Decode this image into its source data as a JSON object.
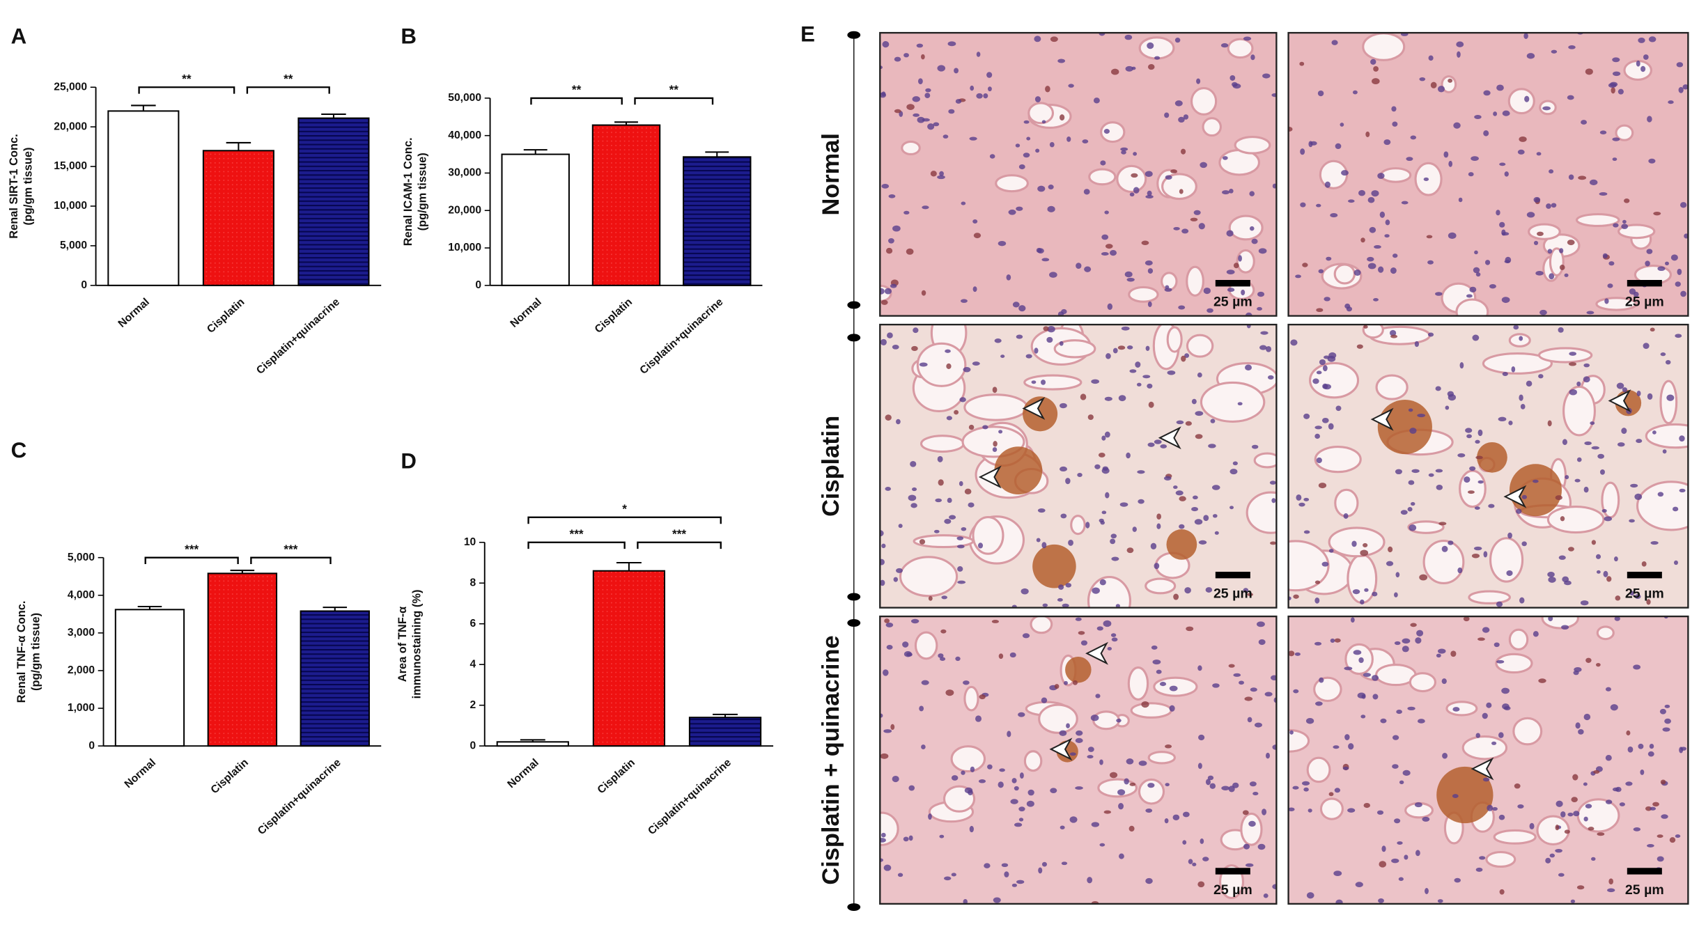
{
  "chart_data": [
    {
      "type": "bar",
      "panel": "A",
      "y_label": [
        "Renal SIRT-1 Conc.",
        "(pg/gm tissue)"
      ],
      "categories": [
        "Normal",
        "Cisplatin",
        "Cisplatin+quinacrine"
      ],
      "values": [
        22000,
        17000,
        21100
      ],
      "errors": [
        700,
        1000,
        500
      ],
      "colors": [
        "#ffffff",
        "#ee1111",
        "#1c1c8e"
      ],
      "hatch": [
        "none",
        "dots",
        "lines"
      ],
      "ylim": [
        0,
        25000
      ],
      "yticks": [
        0,
        {
          "value": 5000,
          "label": "5,000"
        },
        {
          "value": 10000,
          "label": "10,000"
        },
        {
          "value": 15000,
          "label": "15,000"
        },
        {
          "value": 20000,
          "label": "20,000"
        },
        {
          "value": 25000,
          "label": "25,000"
        }
      ],
      "significance": [
        {
          "text": "**",
          "from": "Normal",
          "to": "Cisplatin"
        },
        {
          "text": "**",
          "from": "Cisplatin",
          "to": "Cisplatin+quinacrine"
        }
      ]
    },
    {
      "type": "bar",
      "panel": "B",
      "y_label": [
        "Renal ICAM-1 Conc.",
        "(pg/gm tissue)"
      ],
      "categories": [
        "Normal",
        "Cisplatin",
        "Cisplatin+quinacrine"
      ],
      "values": [
        35000,
        42800,
        34300
      ],
      "errors": [
        1200,
        800,
        1300
      ],
      "colors": [
        "#ffffff",
        "#ee1111",
        "#1c1c8e"
      ],
      "hatch": [
        "none",
        "dots",
        "lines"
      ],
      "ylim": [
        0,
        50000
      ],
      "yticks": [
        0,
        {
          "value": 10000,
          "label": "10,000"
        },
        {
          "value": 20000,
          "label": "20,000"
        },
        {
          "value": 30000,
          "label": "30,000"
        },
        {
          "value": 40000,
          "label": "40,000"
        },
        {
          "value": 50000,
          "label": "50,000"
        }
      ],
      "significance": [
        {
          "text": "**",
          "from": "Normal",
          "to": "Cisplatin"
        },
        {
          "text": "**",
          "from": "Cisplatin",
          "to": "Cisplatin+quinacrine"
        }
      ]
    },
    {
      "type": "bar",
      "panel": "C",
      "y_label": [
        "Renal TNF-α Conc.",
        "(pg/gm tissue)"
      ],
      "categories": [
        "Normal",
        "Cisplatin",
        "Cisplatin+quinacrine"
      ],
      "values": [
        3620,
        4580,
        3580
      ],
      "errors": [
        80,
        80,
        100
      ],
      "colors": [
        "#ffffff",
        "#ee1111",
        "#1c1c8e"
      ],
      "hatch": [
        "none",
        "dots",
        "lines"
      ],
      "ylim": [
        0,
        5000
      ],
      "yticks": [
        0,
        {
          "value": 1000,
          "label": "1,000"
        },
        {
          "value": 2000,
          "label": "2,000"
        },
        {
          "value": 3000,
          "label": "3,000"
        },
        {
          "value": 4000,
          "label": "4,000"
        },
        {
          "value": 5000,
          "label": "5,000"
        }
      ],
      "significance": [
        {
          "text": "***",
          "from": "Normal",
          "to": "Cisplatin"
        },
        {
          "text": "***",
          "from": "Cisplatin",
          "to": "Cisplatin+quinacrine"
        }
      ]
    },
    {
      "type": "bar",
      "panel": "D",
      "y_label": [
        "Area of TNF-α",
        "immunostaining (%)"
      ],
      "categories": [
        "Normal",
        "Cisplatin",
        "Cisplatin+quinacrine"
      ],
      "values": [
        0.2,
        8.6,
        1.4
      ],
      "errors": [
        0.1,
        0.4,
        0.15
      ],
      "colors": [
        "#ffffff",
        "#ee1111",
        "#1c1c8e"
      ],
      "hatch": [
        "none",
        "dots",
        "lines"
      ],
      "ylim": [
        0,
        10
      ],
      "yticks": [
        0,
        2,
        4,
        6,
        8,
        10
      ],
      "significance": [
        {
          "text": "***",
          "from": "Normal",
          "to": "Cisplatin"
        },
        {
          "text": "***",
          "from": "Cisplatin",
          "to": "Cisplatin+quinacrine"
        },
        {
          "text": "*",
          "from": "Normal",
          "to": "Cisplatin+quinacrine"
        }
      ]
    }
  ],
  "panel_e": {
    "label": "E",
    "rows": [
      "Normal",
      "Cisplatin",
      "Cisplatin + quinacrine"
    ],
    "scale_bar": "25 µm"
  }
}
